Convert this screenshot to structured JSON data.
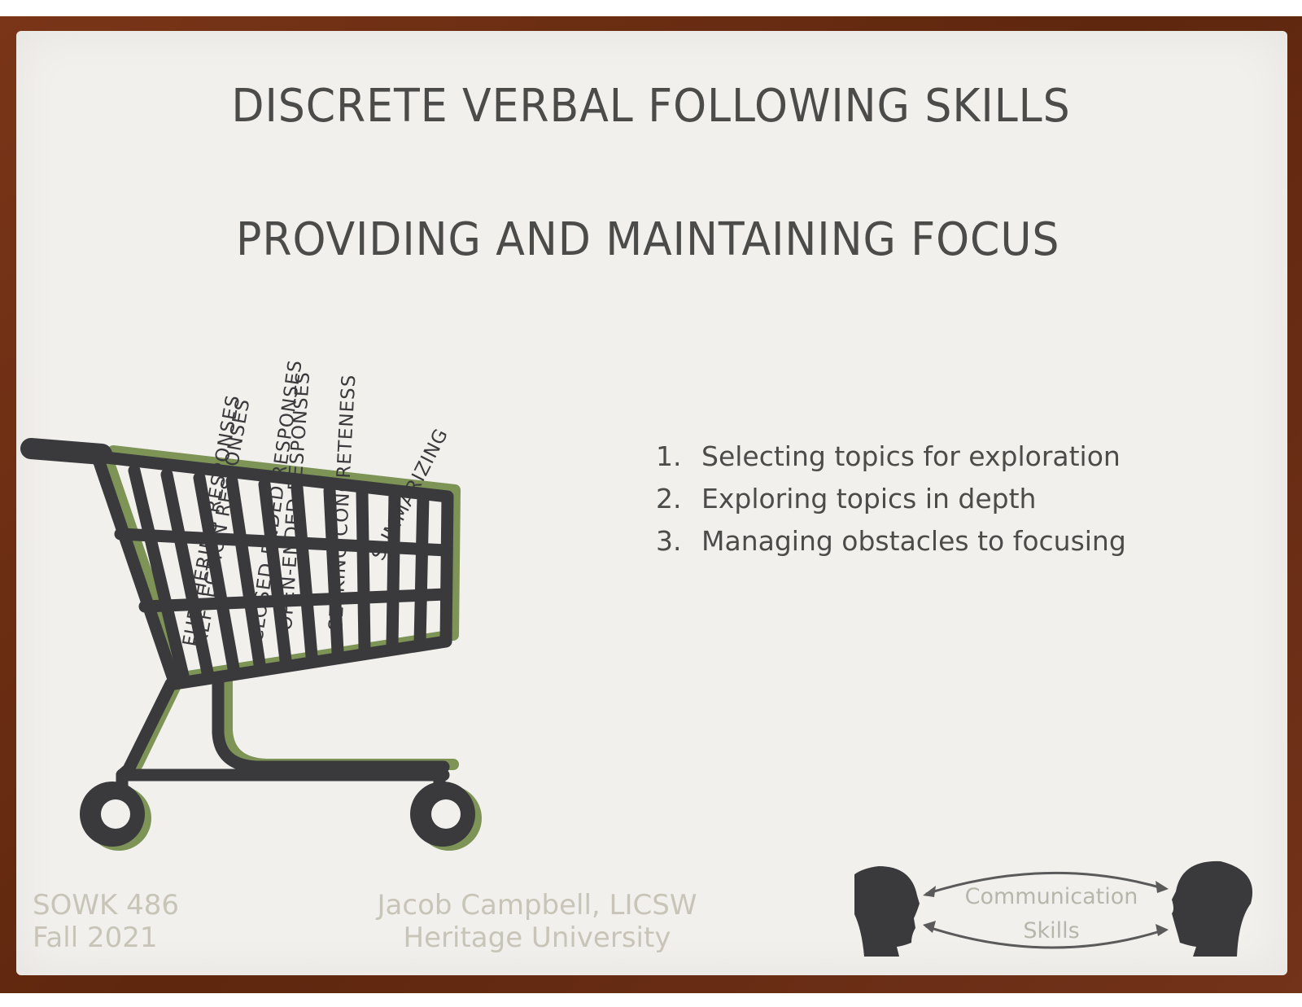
{
  "slide": {
    "title": "DISCRETE VERBAL FOLLOWING SKILLS",
    "subtitle": "PROVIDING AND MAINTAINING FOCUS"
  },
  "list": [
    {
      "num": "1.",
      "text": "Selecting topics for exploration"
    },
    {
      "num": "2.",
      "text": "Exploring topics in depth"
    },
    {
      "num": "3.",
      "text": "Managing obstacles to focusing"
    }
  ],
  "cart_labels": [
    "FURTHERING RESPONSES",
    "REFLECTION RESPONSES",
    "CLOSED-ENDED RESPONSES",
    "OPEN-ENDED RESPONSES",
    "SEEKING CONCRETENESS",
    "SUMMARIZING"
  ],
  "footer": {
    "course": "SOWK 486",
    "term": "Fall 2021",
    "author": "Jacob Campbell, LICSW",
    "institution": "Heritage University"
  },
  "logo": {
    "line1": "Communication",
    "line2": "Skills"
  },
  "colors": {
    "frame": "#6b2e12",
    "slide": "#f1f0ed",
    "text": "#4b4b4a",
    "cart_dark": "#3a3a3d",
    "cart_accent": "#7e9457",
    "footer": "#c8c4b8"
  }
}
